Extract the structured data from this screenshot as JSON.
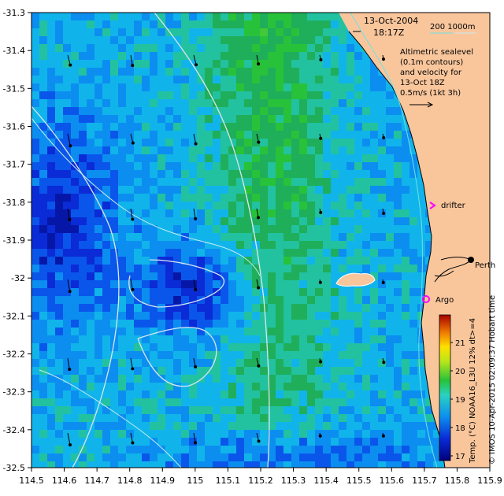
{
  "header": {
    "date": "13-Oct-2004",
    "time": "18:17Z",
    "depth_contours": "200  1000m"
  },
  "legend_text": {
    "line1": "Altimetric sealevel",
    "line2": "(0.1m contours)",
    "line3": "and velocity for",
    "line4": "13-Oct 18Z",
    "line5": "0.5m/s (1kt 3h)"
  },
  "labels": {
    "drifter": "drifter",
    "argo": "Argo",
    "city": "Perth"
  },
  "colorbar": {
    "title": "Temp. (°C) NOAA16_L3U 12% dt>=4",
    "ticks": [
      "21",
      "20",
      "19",
      "18",
      "17"
    ]
  },
  "credit": "© IMOS 10-Apr-2015 02:09:37 Hobart time",
  "axes": {
    "lon_ticks": [
      "114.5",
      "114.6",
      "114.7",
      "114.8",
      "114.9",
      "115",
      "115.1",
      "115.2",
      "115.3",
      "115.4",
      "115.5",
      "115.6",
      "115.7",
      "115.8",
      "115.9"
    ],
    "lat_ticks": [
      "-31.3",
      "-31.4",
      "-31.5",
      "-31.6",
      "-31.7",
      "-31.8",
      "-31.9",
      "-32",
      "-32.1",
      "-32.2",
      "-32.3",
      "-32.4",
      "-32.5"
    ]
  },
  "colors": {
    "land": "#f9c69c",
    "contour": "#d8e6f0",
    "depth_200": "#6fe0e6",
    "depth_1000": "#c8ecf5",
    "drifter_marker": "#ff00ff",
    "argo_marker": "#ff00ff"
  }
}
